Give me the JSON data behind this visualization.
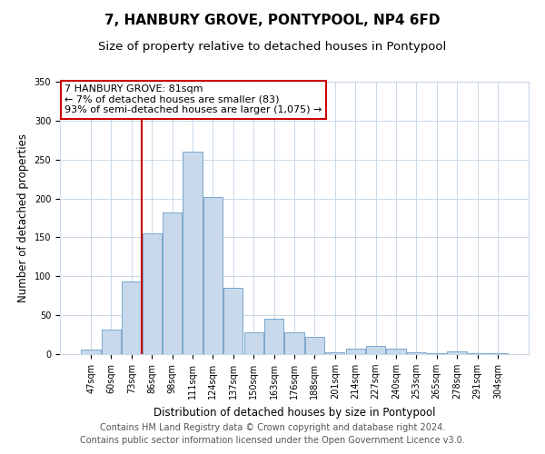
{
  "title": "7, HANBURY GROVE, PONTYPOOL, NP4 6FD",
  "subtitle": "Size of property relative to detached houses in Pontypool",
  "xlabel": "Distribution of detached houses by size in Pontypool",
  "ylabel": "Number of detached properties",
  "bar_labels": [
    "47sqm",
    "60sqm",
    "73sqm",
    "86sqm",
    "98sqm",
    "111sqm",
    "124sqm",
    "137sqm",
    "150sqm",
    "163sqm",
    "176sqm",
    "188sqm",
    "201sqm",
    "214sqm",
    "227sqm",
    "240sqm",
    "253sqm",
    "265sqm",
    "278sqm",
    "291sqm",
    "304sqm"
  ],
  "bar_values": [
    6,
    32,
    93,
    155,
    182,
    260,
    202,
    85,
    28,
    46,
    28,
    22,
    2,
    7,
    10,
    7,
    2,
    1,
    4,
    1,
    1
  ],
  "bar_color": "#c8d9ec",
  "bar_edge_color": "#7aa6cc",
  "vline_color": "#cc0000",
  "vline_x": 2.5,
  "annotation_lines": [
    "7 HANBURY GROVE: 81sqm",
    "← 7% of detached houses are smaller (83)",
    "93% of semi-detached houses are larger (1,075) →"
  ],
  "box_facecolor": "#ffffff",
  "box_edgecolor": "#cc0000",
  "ylim": [
    0,
    350
  ],
  "yticks": [
    0,
    50,
    100,
    150,
    200,
    250,
    300,
    350
  ],
  "grid_color": "#c8d8e8",
  "title_fontsize": 11,
  "subtitle_fontsize": 9.5,
  "axis_label_fontsize": 8.5,
  "tick_fontsize": 7,
  "annotation_fontsize": 8,
  "footer_fontsize": 7,
  "footer_lines": [
    "Contains HM Land Registry data © Crown copyright and database right 2024.",
    "Contains public sector information licensed under the Open Government Licence v3.0."
  ],
  "background_color": "#ffffff"
}
